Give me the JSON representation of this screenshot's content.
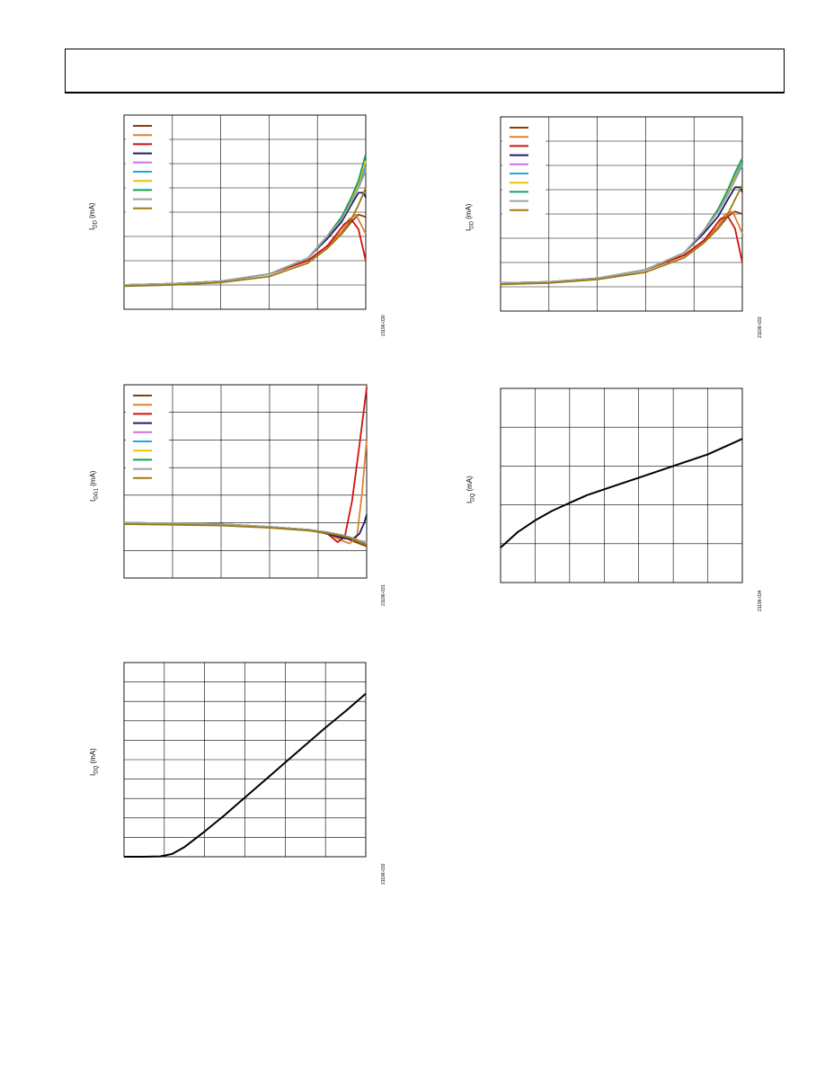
{
  "header": {
    "title": ""
  },
  "chart_data": [
    {
      "id": "c1",
      "type": "line",
      "ylabel_main": "I",
      "ylabel_sub": "DD",
      "ylabel_unit": " (mA)",
      "figure_id": "21196-030",
      "grid": true,
      "legend": "top-left",
      "xlim": [
        0,
        5
      ],
      "ylim": [
        0,
        8
      ],
      "series": [
        {
          "color": "#8B3A0F",
          "x": [
            0,
            1,
            2,
            3,
            3.8,
            4.2,
            4.5,
            4.7,
            4.85,
            5
          ],
          "y": [
            1.0,
            1.05,
            1.15,
            1.45,
            2.0,
            2.6,
            3.1,
            3.6,
            3.9,
            3.8
          ]
        },
        {
          "color": "#E08030",
          "x": [
            0,
            1,
            2,
            3,
            3.8,
            4.2,
            4.5,
            4.65,
            4.8,
            5
          ],
          "y": [
            1.0,
            1.05,
            1.15,
            1.45,
            2.0,
            2.6,
            3.2,
            3.7,
            3.9,
            3.1
          ]
        },
        {
          "color": "#D01010",
          "x": [
            0,
            1,
            2,
            3,
            3.8,
            4.2,
            4.4,
            4.55,
            4.7,
            4.85,
            5
          ],
          "y": [
            1.0,
            1.05,
            1.15,
            1.45,
            2.0,
            2.6,
            3.1,
            3.5,
            3.7,
            3.3,
            2.0
          ]
        },
        {
          "color": "#1A2060",
          "x": [
            0,
            1,
            2,
            3,
            3.8,
            4.2,
            4.5,
            4.7,
            4.85,
            4.95,
            5
          ],
          "y": [
            1.0,
            1.05,
            1.15,
            1.45,
            2.1,
            2.9,
            3.6,
            4.3,
            4.8,
            4.8,
            4.6
          ]
        },
        {
          "color": "#D070E0",
          "x": [
            0,
            1,
            2,
            3,
            3.8,
            4.2,
            4.5,
            4.7,
            4.85,
            5
          ],
          "y": [
            1.0,
            1.05,
            1.15,
            1.45,
            2.1,
            3.0,
            3.8,
            4.5,
            5.1,
            5.8
          ]
        },
        {
          "color": "#20A8E0",
          "x": [
            0,
            1,
            2,
            3,
            3.8,
            4.2,
            4.5,
            4.7,
            4.85,
            5
          ],
          "y": [
            1.0,
            1.05,
            1.15,
            1.45,
            2.1,
            3.0,
            3.8,
            4.5,
            5.1,
            5.9
          ]
        },
        {
          "color": "#F0C000",
          "x": [
            0,
            1,
            2,
            3,
            3.8,
            4.2,
            4.5,
            4.7,
            4.85,
            5
          ],
          "y": [
            1.0,
            1.05,
            1.15,
            1.45,
            2.1,
            3.0,
            3.8,
            4.5,
            5.2,
            6.1
          ]
        },
        {
          "color": "#10A060",
          "x": [
            0,
            1,
            2,
            3,
            3.8,
            4.2,
            4.5,
            4.7,
            4.85,
            5
          ],
          "y": [
            1.0,
            1.05,
            1.15,
            1.45,
            2.1,
            3.0,
            3.8,
            4.6,
            5.3,
            6.4
          ]
        },
        {
          "color": "#A0A0A0",
          "x": [
            0,
            1,
            2,
            3,
            3.8,
            4.2,
            4.5,
            4.7,
            4.85,
            5
          ],
          "y": [
            1.0,
            1.05,
            1.15,
            1.45,
            2.1,
            3.0,
            3.7,
            4.4,
            5.0,
            5.7
          ]
        },
        {
          "color": "#9A7A10",
          "x": [
            0,
            1,
            2,
            3,
            3.8,
            4.2,
            4.5,
            4.7,
            4.85,
            5
          ],
          "y": [
            0.95,
            1.0,
            1.1,
            1.35,
            1.9,
            2.5,
            3.1,
            3.7,
            4.3,
            5.0
          ]
        }
      ]
    },
    {
      "id": "c2",
      "type": "line",
      "ylabel_main": "I",
      "ylabel_sub": "DD",
      "ylabel_unit": " (mA)",
      "figure_id": "21196-033",
      "grid": true,
      "legend": "top-left",
      "xlim": [
        0,
        5
      ],
      "ylim": [
        0,
        8
      ],
      "series": [
        {
          "color": "#8B3A0F",
          "x": [
            0,
            1,
            2,
            3,
            3.8,
            4.2,
            4.5,
            4.7,
            4.85,
            5
          ],
          "y": [
            1.15,
            1.2,
            1.35,
            1.7,
            2.3,
            2.9,
            3.4,
            3.9,
            4.1,
            4.0
          ]
        },
        {
          "color": "#E08030",
          "x": [
            0,
            1,
            2,
            3,
            3.8,
            4.2,
            4.5,
            4.65,
            4.8,
            5
          ],
          "y": [
            1.15,
            1.2,
            1.35,
            1.7,
            2.3,
            2.9,
            3.5,
            4.0,
            4.1,
            3.2
          ]
        },
        {
          "color": "#D01010",
          "x": [
            0,
            1,
            2,
            3,
            3.8,
            4.2,
            4.4,
            4.55,
            4.7,
            4.85,
            5
          ],
          "y": [
            1.15,
            1.2,
            1.35,
            1.7,
            2.3,
            2.9,
            3.4,
            3.8,
            3.9,
            3.4,
            2.0
          ]
        },
        {
          "color": "#1A2060",
          "x": [
            0,
            1,
            2,
            3,
            3.8,
            4.2,
            4.5,
            4.7,
            4.85,
            4.95,
            5
          ],
          "y": [
            1.15,
            1.2,
            1.35,
            1.7,
            2.4,
            3.2,
            3.9,
            4.6,
            5.1,
            5.1,
            4.9
          ]
        },
        {
          "color": "#D070E0",
          "x": [
            0,
            1,
            2,
            3,
            3.8,
            4.2,
            4.5,
            4.7,
            4.85,
            5
          ],
          "y": [
            1.15,
            1.2,
            1.35,
            1.7,
            2.4,
            3.3,
            4.1,
            4.8,
            5.4,
            6.0
          ]
        },
        {
          "color": "#20A8E0",
          "x": [
            0,
            1,
            2,
            3,
            3.8,
            4.2,
            4.5,
            4.7,
            4.85,
            5
          ],
          "y": [
            1.15,
            1.2,
            1.35,
            1.7,
            2.4,
            3.3,
            4.2,
            4.9,
            5.5,
            6.1
          ]
        },
        {
          "color": "#F0C000",
          "x": [
            0,
            1,
            2,
            3,
            3.8,
            4.2,
            4.5,
            4.7,
            4.85,
            5
          ],
          "y": [
            1.15,
            1.2,
            1.35,
            1.7,
            2.4,
            3.3,
            4.2,
            4.9,
            5.6,
            6.3
          ]
        },
        {
          "color": "#10A060",
          "x": [
            0,
            1,
            2,
            3,
            3.8,
            4.2,
            4.5,
            4.7,
            4.85,
            5
          ],
          "y": [
            1.15,
            1.2,
            1.35,
            1.7,
            2.4,
            3.3,
            4.2,
            5.0,
            5.7,
            6.3
          ]
        },
        {
          "color": "#A0A0A0",
          "x": [
            0,
            1,
            2,
            3,
            3.8,
            4.2,
            4.5,
            4.7,
            4.85,
            5
          ],
          "y": [
            1.15,
            1.2,
            1.35,
            1.7,
            2.4,
            3.3,
            4.1,
            4.8,
            5.4,
            6.0
          ]
        },
        {
          "color": "#9A7A10",
          "x": [
            0,
            1,
            2,
            3,
            3.8,
            4.2,
            4.5,
            4.7,
            4.85,
            5
          ],
          "y": [
            1.1,
            1.15,
            1.3,
            1.6,
            2.2,
            2.8,
            3.4,
            4.0,
            4.6,
            5.2
          ]
        }
      ]
    },
    {
      "id": "c3",
      "type": "line",
      "ylabel_main": "I",
      "ylabel_sub": "GG1",
      "ylabel_unit": " (mA)",
      "figure_id": "21196-031",
      "grid": true,
      "legend": "top-left",
      "xlim": [
        0,
        5
      ],
      "ylim": [
        0,
        7
      ],
      "series": [
        {
          "color": "#8B3A0F",
          "x": [
            0,
            1,
            2,
            3,
            3.8,
            4.2,
            4.5,
            4.7,
            4.85,
            5
          ],
          "y": [
            2.0,
            1.98,
            1.95,
            1.85,
            1.75,
            1.65,
            1.5,
            1.35,
            1.25,
            1.15
          ]
        },
        {
          "color": "#E08030",
          "x": [
            0,
            1,
            2,
            3,
            3.8,
            4.2,
            4.5,
            4.65,
            4.8,
            4.9,
            5
          ],
          "y": [
            2.0,
            1.98,
            1.95,
            1.85,
            1.75,
            1.6,
            1.35,
            1.25,
            1.5,
            3.0,
            5.0
          ]
        },
        {
          "color": "#D01010",
          "x": [
            0,
            1,
            2,
            3,
            3.8,
            4.2,
            4.4,
            4.55,
            4.7,
            4.85,
            5
          ],
          "y": [
            2.0,
            1.98,
            1.95,
            1.85,
            1.75,
            1.6,
            1.3,
            1.5,
            2.8,
            4.8,
            6.9
          ]
        },
        {
          "color": "#1A2060",
          "x": [
            0,
            1,
            2,
            3,
            3.8,
            4.2,
            4.5,
            4.7,
            4.85,
            4.95,
            5
          ],
          "y": [
            2.0,
            1.98,
            1.95,
            1.85,
            1.75,
            1.6,
            1.45,
            1.4,
            1.6,
            2.0,
            2.3
          ]
        },
        {
          "color": "#D070E0",
          "x": [
            0,
            1,
            2,
            3,
            3.8,
            4.2,
            4.5,
            4.7,
            4.85,
            5
          ],
          "y": [
            2.0,
            1.98,
            1.95,
            1.85,
            1.75,
            1.65,
            1.55,
            1.45,
            1.35,
            1.25
          ]
        },
        {
          "color": "#20A8E0",
          "x": [
            0,
            1,
            2,
            3,
            3.8,
            4.2,
            4.5,
            4.7,
            4.85,
            5
          ],
          "y": [
            2.0,
            1.98,
            1.95,
            1.85,
            1.75,
            1.65,
            1.55,
            1.45,
            1.35,
            1.3
          ]
        },
        {
          "color": "#F0C000",
          "x": [
            0,
            1,
            2,
            3,
            3.8,
            4.2,
            4.5,
            4.7,
            4.85,
            5
          ],
          "y": [
            2.0,
            1.98,
            1.95,
            1.85,
            1.75,
            1.65,
            1.55,
            1.45,
            1.35,
            1.3
          ]
        },
        {
          "color": "#10A060",
          "x": [
            0,
            1,
            2,
            3,
            3.8,
            4.2,
            4.5,
            4.7,
            4.85,
            5
          ],
          "y": [
            2.0,
            1.98,
            1.95,
            1.85,
            1.75,
            1.65,
            1.55,
            1.45,
            1.35,
            1.3
          ]
        },
        {
          "color": "#A0A0A0",
          "x": [
            0,
            1,
            2,
            3,
            3.8,
            4.2,
            4.5,
            4.7,
            4.85,
            5
          ],
          "y": [
            2.0,
            1.98,
            1.95,
            1.85,
            1.75,
            1.65,
            1.55,
            1.45,
            1.35,
            1.3
          ]
        },
        {
          "color": "#9A7A10",
          "x": [
            0,
            1,
            2,
            3,
            3.8,
            4.2,
            4.5,
            4.7,
            4.85,
            5
          ],
          "y": [
            1.95,
            1.93,
            1.9,
            1.82,
            1.72,
            1.62,
            1.52,
            1.42,
            1.3,
            1.2
          ]
        }
      ]
    },
    {
      "id": "c4",
      "type": "line",
      "ylabel_main": "I",
      "ylabel_sub": "DQ",
      "ylabel_unit": " (mA)",
      "figure_id": "21196-034",
      "grid": true,
      "xlim": [
        0,
        7
      ],
      "ylim": [
        0,
        5
      ],
      "series": [
        {
          "color": "#000000",
          "x": [
            0,
            0.5,
            1,
            1.5,
            2,
            2.5,
            3,
            3.5,
            4,
            4.5,
            5,
            5.5,
            6,
            6.5,
            7
          ],
          "y": [
            0.9,
            1.3,
            1.6,
            1.85,
            2.05,
            2.25,
            2.4,
            2.55,
            2.7,
            2.85,
            3.0,
            3.15,
            3.3,
            3.5,
            3.7
          ]
        }
      ]
    },
    {
      "id": "c5",
      "type": "line",
      "ylabel_main": "I",
      "ylabel_sub": "DQ",
      "ylabel_unit": " (mA)",
      "figure_id": "21196-032",
      "grid": true,
      "xlim": [
        0,
        6
      ],
      "ylim": [
        0,
        10
      ],
      "series": [
        {
          "color": "#000000",
          "x": [
            0,
            0.5,
            0.9,
            1.2,
            1.5,
            2,
            2.5,
            3,
            3.5,
            4,
            4.5,
            5,
            5.5,
            6
          ],
          "y": [
            0,
            0,
            0.02,
            0.15,
            0.5,
            1.3,
            2.15,
            3.05,
            3.95,
            4.85,
            5.75,
            6.65,
            7.5,
            8.4
          ]
        }
      ]
    }
  ]
}
